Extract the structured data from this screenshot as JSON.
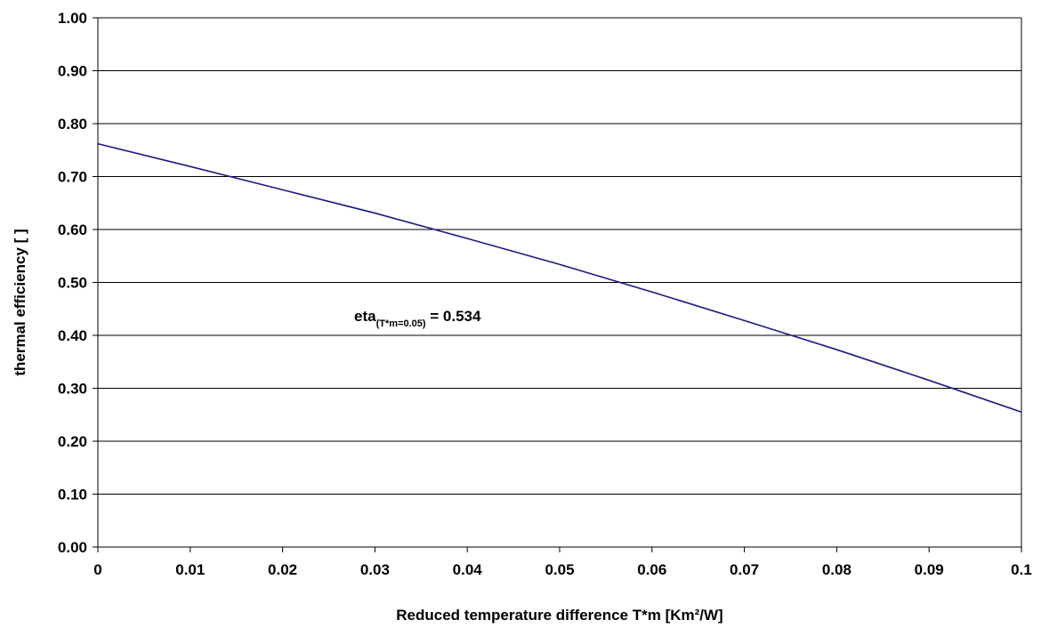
{
  "chart_data": {
    "type": "line",
    "title": "",
    "xlabel": "Reduced temperature difference T*m [Km²/W]",
    "ylabel": "thermal efficiency [ ]",
    "xlim": [
      0,
      0.1
    ],
    "ylim": [
      0,
      1.0
    ],
    "x_ticks": [
      "0",
      "0.01",
      "0.02",
      "0.03",
      "0.04",
      "0.05",
      "0.06",
      "0.07",
      "0.08",
      "0.09",
      "0.1"
    ],
    "y_ticks": [
      "0.00",
      "0.10",
      "0.20",
      "0.30",
      "0.40",
      "0.50",
      "0.60",
      "0.70",
      "0.80",
      "0.90",
      "1.00"
    ],
    "grid": "horizontal",
    "series": [
      {
        "color": "#1a1a80",
        "x": [
          0,
          0.01,
          0.02,
          0.03,
          0.04,
          0.05,
          0.06,
          0.07,
          0.08,
          0.09,
          0.1
        ],
        "y": [
          0.762,
          0.719,
          0.675,
          0.631,
          0.583,
          0.534,
          0.482,
          0.428,
          0.373,
          0.315,
          0.255
        ]
      }
    ],
    "annotation": {
      "main": "eta",
      "subscript": "(T*m=0.05)",
      "suffix": " = 0.534"
    }
  }
}
